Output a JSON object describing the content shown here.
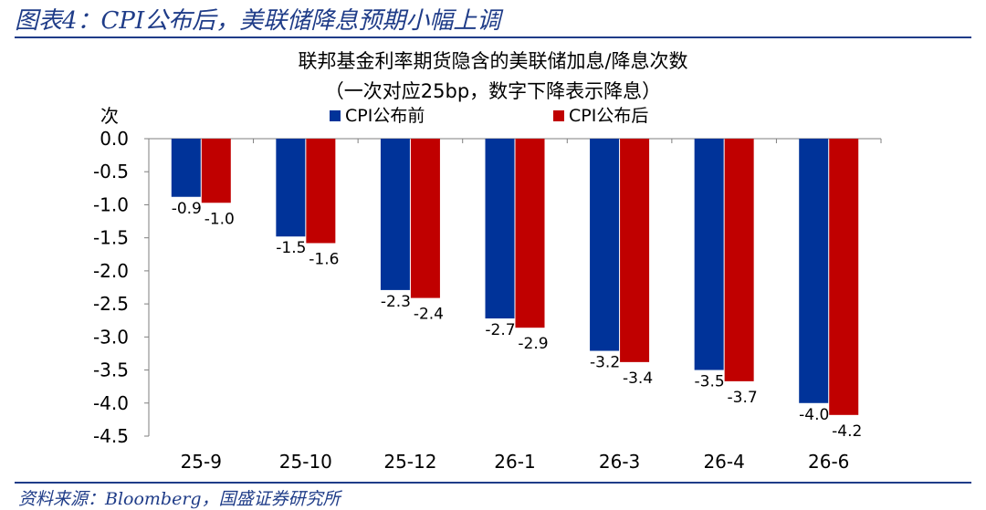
{
  "figure": {
    "title": "图表4：CPI公布后，美联储降息预期小幅上调",
    "source": "资料来源：Bloomberg，国盛证券研究所"
  },
  "chart_data": {
    "type": "bar",
    "title": "联邦基金利率期货隐含的美联储加息/降息次数",
    "subtitle": "（一次对应25bp，数字下降表示降息）",
    "ylabel": "次",
    "xlabel": "",
    "ylim": [
      -4.5,
      0.0
    ],
    "ytick_step": 0.5,
    "grid": false,
    "legend_position": "top",
    "categories": [
      "25-9",
      "25-10",
      "25-12",
      "26-1",
      "26-3",
      "26-4",
      "26-6"
    ],
    "series": [
      {
        "name": "CPI公布前",
        "color": "#003399",
        "values": [
          -0.9,
          -1.5,
          -2.3,
          -2.7,
          -3.2,
          -3.5,
          -4.0
        ]
      },
      {
        "name": "CPI公布后",
        "color": "#c00000",
        "values": [
          -1.0,
          -1.6,
          -2.4,
          -2.9,
          -3.4,
          -3.7,
          -4.2
        ]
      }
    ],
    "series_display_values": [
      [
        -0.88,
        -1.48,
        -2.29,
        -2.72,
        -3.21,
        -3.5,
        -4.0
      ],
      [
        -0.97,
        -1.58,
        -2.41,
        -2.86,
        -3.38,
        -3.67,
        -4.18
      ]
    ]
  }
}
